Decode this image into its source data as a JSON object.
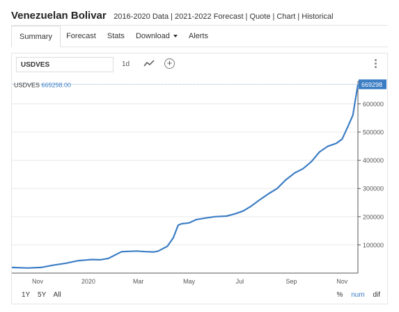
{
  "header": {
    "title": "Venezuelan Bolivar",
    "sublinks": "2016-2020 Data | 2021-2022 Forecast | Quote | Chart | Historical"
  },
  "tabs": [
    {
      "label": "Summary",
      "active": true
    },
    {
      "label": "Forecast",
      "active": false
    },
    {
      "label": "Stats",
      "active": false
    },
    {
      "label": "Download",
      "active": false,
      "dropdown": true
    },
    {
      "label": "Alerts",
      "active": false
    }
  ],
  "toolbar": {
    "symbol_value": "USDVES",
    "interval_label": "1d",
    "icons": [
      "line-chart-icon",
      "add-circle-icon",
      "vertical-dots-menu-icon"
    ]
  },
  "chart_data": {
    "type": "line",
    "series": [
      {
        "name": "USDVES",
        "last_value_label": "669298.00",
        "last_value_tag": "669298",
        "color": "#3b7dc4"
      }
    ],
    "x_ticks": [
      "Nov",
      "2020",
      "Mar",
      "May",
      "Jul",
      "Sep",
      "Nov"
    ],
    "y_ticks": [
      "100000",
      "200000",
      "300000",
      "400000",
      "500000",
      "600000"
    ],
    "ylim": [
      0,
      680000
    ],
    "x_domain": [
      "2019-10-01",
      "2020-11-20"
    ],
    "x": [
      "2019-10-01",
      "2019-10-20",
      "2019-11-05",
      "2019-11-20",
      "2019-12-05",
      "2019-12-20",
      "2020-01-05",
      "2020-01-15",
      "2020-01-25",
      "2020-02-10",
      "2020-02-28",
      "2020-03-10",
      "2020-03-20",
      "2020-03-25",
      "2020-04-05",
      "2020-04-12",
      "2020-04-18",
      "2020-04-22",
      "2020-05-01",
      "2020-05-10",
      "2020-05-20",
      "2020-06-01",
      "2020-06-15",
      "2020-06-25",
      "2020-07-05",
      "2020-07-15",
      "2020-07-25",
      "2020-08-05",
      "2020-08-15",
      "2020-08-25",
      "2020-09-05",
      "2020-09-15",
      "2020-09-25",
      "2020-10-05",
      "2020-10-15",
      "2020-10-25",
      "2020-11-01",
      "2020-11-08",
      "2020-11-14",
      "2020-11-20"
    ],
    "values": [
      20000,
      18000,
      20000,
      28000,
      35000,
      44000,
      48000,
      47000,
      52000,
      76000,
      78000,
      76000,
      75000,
      78000,
      95000,
      125000,
      170000,
      175000,
      178000,
      190000,
      195000,
      200000,
      202000,
      210000,
      220000,
      238000,
      260000,
      282000,
      300000,
      330000,
      355000,
      370000,
      395000,
      430000,
      450000,
      460000,
      475000,
      520000,
      560000,
      669298
    ],
    "grid": true,
    "legend": "top-left",
    "range_buttons": [
      "1Y",
      "5Y",
      "All"
    ],
    "modes": [
      "%",
      "num",
      "dif"
    ],
    "selected_mode": "num"
  }
}
